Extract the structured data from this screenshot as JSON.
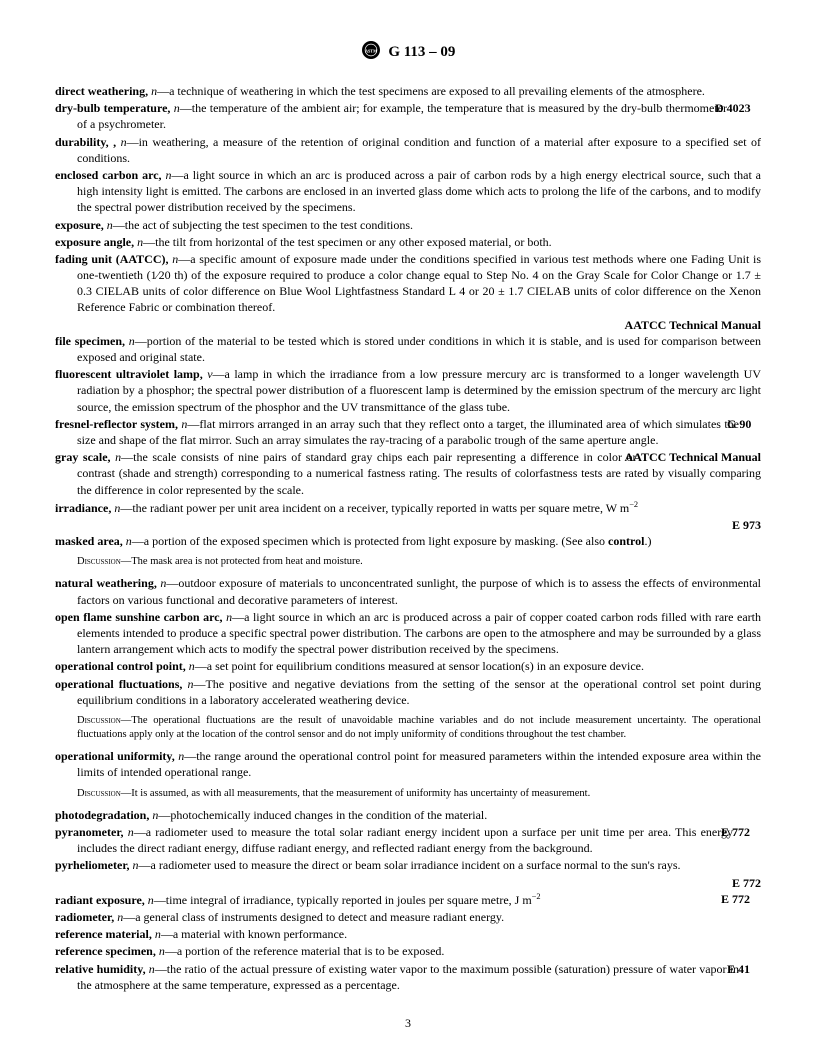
{
  "header": {
    "docnum": "G 113 – 09"
  },
  "entries": [
    {
      "term": "direct weathering,",
      "pos": "n",
      "def": "—a technique of weathering in which the test specimens are exposed to all prevailing elements of the atmosphere."
    },
    {
      "term": "dry-bulb temperature,",
      "pos": "n",
      "def": "—the temperature of the ambient air; for example, the temperature that is measured by the dry-bulb thermometer of a psychrometer.",
      "ref": "D 4023"
    },
    {
      "term": "durability, ,",
      "pos": "n",
      "def": "—in weathering, a measure of the retention of original condition and function of a material after exposure to a specified set of conditions."
    },
    {
      "term": "enclosed carbon arc,",
      "pos": "n",
      "def": "—a light source in which an arc is produced across a pair of carbon rods by a high energy electrical source, such that a high intensity light is emitted. The carbons are enclosed in an inverted glass dome which acts to prolong the life of the carbons, and to modify the spectral power distribution received by the specimens."
    },
    {
      "term": "exposure,",
      "pos": "n",
      "def": "—the act of subjecting the test specimen to the test conditions."
    },
    {
      "term": "exposure angle,",
      "pos": "n",
      "def": "—the tilt from horizontal of the test specimen or any other exposed material, or both."
    },
    {
      "term": "fading unit (AATCC),",
      "pos": "n",
      "def": "—a specific amount of exposure made under the conditions specified in various test methods where one Fading Unit is one-twentieth (1⁄20 th) of the exposure required to produce a color change equal to Step No. 4 on the Gray Scale for Color Change or 1.7 ± 0.3 CIELAB units of color difference on Blue Wool Lightfastness Standard L 4 or 20 ± 1.7 CIELAB units of color difference on the Xenon Reference Fabric or combination thereof.",
      "reflineafter": "AATCC Technical Manual"
    },
    {
      "term": "file specimen,",
      "pos": "n",
      "def": "—portion of the material to be tested which is stored under conditions in which it is stable, and is used for comparison between exposed and original state."
    },
    {
      "term": "fluorescent ultraviolet lamp,",
      "pos": "v",
      "def": "—a lamp in which the irradiance from a low pressure mercury arc is transformed to a longer wavelength UV radiation by a phosphor; the spectral power distribution of a fluorescent lamp is determined by the emission spectrum of the mercury arc light source, the emission spectrum of the phosphor and the UV transmittance of the glass tube."
    },
    {
      "term": "fresnel-reflector system,",
      "pos": "n",
      "def": "—flat mirrors arranged in an array such that they reflect onto a target, the illuminated area of which simulates the size and shape of the flat mirror. Such an array simulates the ray-tracing of a parabolic trough of the same aperture angle.",
      "ref": "G 90"
    },
    {
      "term": "gray scale,",
      "pos": "n",
      "def": "—the scale consists of nine pairs of standard gray chips each pair representing a difference in color or contrast (shade and strength) corresponding to a numerical fastness rating. The results of colorfastness tests are rated by visually comparing the difference in color represented by the scale.",
      "ref": "AATCC Technical Manual"
    },
    {
      "term": "irradiance,",
      "pos": "n",
      "defhtml": "—the radiant power per unit area incident on a receiver, typically reported in watts per square metre, W m<sup>−2</sup>",
      "reflineafter": "E 973"
    },
    {
      "term": "masked area,",
      "pos": "n",
      "defhtml": "—a portion of the exposed specimen which is protected from light exposure by masking. (See also <b>control</b>.)",
      "discussion": "The mask area is not protected from heat and moisture."
    },
    {
      "term": "natural weathering,",
      "pos": "n",
      "def": "—outdoor exposure of materials to unconcentrated sunlight, the purpose of which is to assess the effects of environmental factors on various functional and decorative parameters of interest."
    },
    {
      "term": "open flame sunshine carbon arc,",
      "pos": "n",
      "def": "—a light source in which an arc is produced across a pair of copper coated carbon rods filled with rare earth elements intended to produce a specific spectral power distribution. The carbons are open to the atmosphere and may be surrounded by a glass lantern arrangement which acts to modify the spectral power distribution received by the specimens."
    },
    {
      "term": "operational control point,",
      "pos": "n",
      "def": "—a set point for equilibrium conditions measured at sensor location(s) in an exposure device."
    },
    {
      "term": "operational fluctuations,",
      "pos": "n",
      "def": "—The positive and negative deviations from the setting of the sensor at the operational control set point during equilibrium conditions in a laboratory accelerated weathering device.",
      "discussion": "The operational fluctuations are the result of unavoidable machine variables and do not include measurement uncertainty. The operational fluctuations apply only at the location of the control sensor and do not imply uniformity of conditions throughout the test chamber."
    },
    {
      "term": "operational uniformity,",
      "pos": "n",
      "def": "—the range around the operational control point for measured parameters within the intended exposure area within the limits of intended operational range.",
      "discussion": "It is assumed, as with all measurements, that the measurement of uniformity has uncertainty of measurement."
    },
    {
      "term": "photodegradation,",
      "pos": "n",
      "def": "—photochemically induced changes in the condition of the material."
    },
    {
      "term": "pyranometer,",
      "pos": "n",
      "def": "—a radiometer used to measure the total solar radiant energy incident upon a surface per unit time per area. This energy includes the direct radiant energy, diffuse radiant energy, and reflected radiant energy from the background.",
      "ref": "E 772"
    },
    {
      "term": "pyrheliometer,",
      "pos": "n",
      "def": "—a radiometer used to measure the direct or beam solar irradiance incident on a surface normal to the sun's rays.",
      "reflineafter": "E 772"
    },
    {
      "term": "radiant exposure,",
      "pos": "n",
      "defhtml": "—time integral of irradiance, typically reported in joules per square metre, J m<sup>−2</sup>",
      "ref": "E 772"
    },
    {
      "term": "radiometer,",
      "pos": "n",
      "def": "—a general class of instruments designed to detect and measure radiant energy."
    },
    {
      "term": "reference material,",
      "pos": "n",
      "def": "—a material with known performance."
    },
    {
      "term": "reference specimen,",
      "pos": "n",
      "def": "—a portion of the reference material that is to be exposed."
    },
    {
      "term": "relative humidity,",
      "pos": "n",
      "def": "—the ratio of the actual pressure of existing water vapor to the maximum possible (saturation) pressure of water vapor in the atmosphere at the same temperature, expressed as a percentage.",
      "ref": "E 41"
    }
  ],
  "pagenum": "3"
}
